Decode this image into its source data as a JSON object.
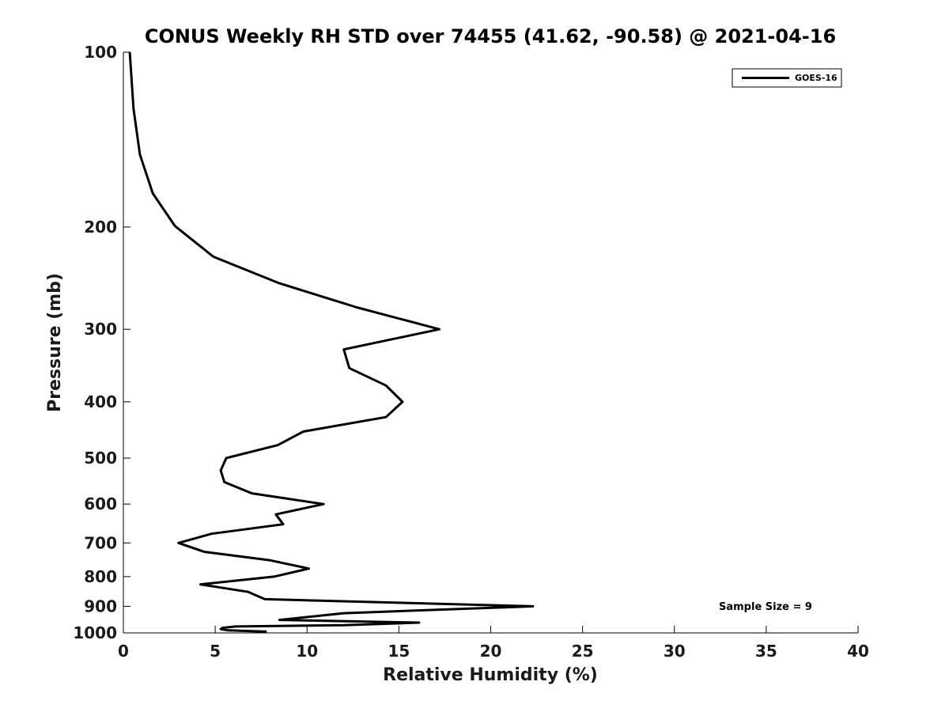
{
  "chart_data": {
    "type": "line",
    "title": "CONUS Weekly RH STD over 74455 (41.62, -90.58) @ 2021-04-16",
    "xlabel": "Relative Humidity (%)",
    "ylabel": "Pressure (mb)",
    "xlim": [
      0,
      40
    ],
    "ylim": [
      100,
      1000
    ],
    "y_scale": "log",
    "y_inverted": true,
    "x_ticks": [
      0,
      5,
      10,
      15,
      20,
      25,
      30,
      35,
      40
    ],
    "y_ticks": [
      100,
      200,
      300,
      400,
      500,
      600,
      700,
      800,
      900,
      1000
    ],
    "grid": false,
    "legend_position": "top-right",
    "series": [
      {
        "name": "GOES-16",
        "color": "#000000",
        "points": [
          [
            0.35,
            100
          ],
          [
            0.55,
            125
          ],
          [
            0.9,
            150
          ],
          [
            1.6,
            175
          ],
          [
            2.8,
            199
          ],
          [
            4.9,
            225
          ],
          [
            8.5,
            250
          ],
          [
            12.7,
            275
          ],
          [
            17.2,
            300
          ],
          [
            12.0,
            325
          ],
          [
            12.3,
            350
          ],
          [
            14.3,
            375
          ],
          [
            15.2,
            400
          ],
          [
            14.3,
            425
          ],
          [
            9.8,
            450
          ],
          [
            8.4,
            475
          ],
          [
            5.6,
            500
          ],
          [
            5.3,
            525
          ],
          [
            5.5,
            550
          ],
          [
            7.0,
            575
          ],
          [
            10.9,
            600
          ],
          [
            8.3,
            625
          ],
          [
            8.7,
            650
          ],
          [
            4.8,
            675
          ],
          [
            3.0,
            700
          ],
          [
            4.4,
            725
          ],
          [
            8.0,
            750
          ],
          [
            10.1,
            775
          ],
          [
            8.2,
            800
          ],
          [
            4.2,
            825
          ],
          [
            6.8,
            850
          ],
          [
            7.7,
            875
          ],
          [
            22.3,
            900
          ],
          [
            12.0,
            925
          ],
          [
            8.5,
            950
          ],
          [
            16.1,
            960
          ],
          [
            12.0,
            970
          ],
          [
            6.1,
            975
          ],
          [
            5.4,
            980
          ],
          [
            5.3,
            985
          ],
          [
            5.7,
            990
          ],
          [
            7.8,
            995
          ]
        ]
      }
    ],
    "annotation": "Sample Size = 9"
  }
}
